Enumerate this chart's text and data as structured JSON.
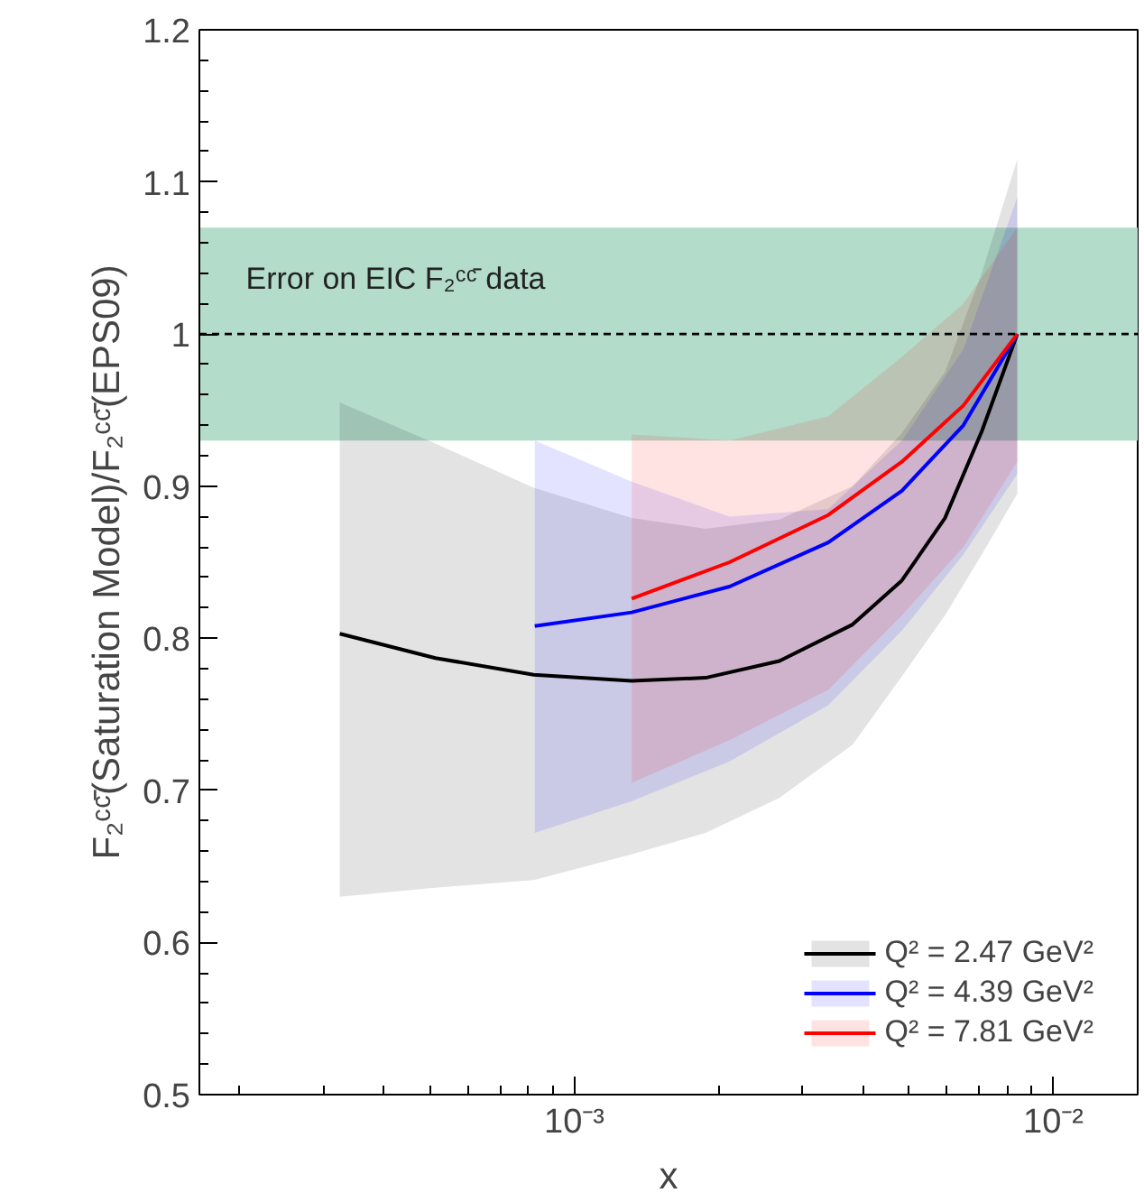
{
  "chart_data": {
    "type": "line",
    "xlabel": "x",
    "ylabel": "F₂ᶜᶜ̄(Saturation Model)/F₂ᶜᶜ̄(EPS09)",
    "log": "x",
    "xlim": [
      0.000165,
      0.015
    ],
    "xticks": [
      {
        "value": 0.001,
        "label": "10⁻³"
      },
      {
        "value": 0.01,
        "label": "10⁻²"
      }
    ],
    "ylim": [
      0.5,
      1.2
    ],
    "yticks": [
      0.5,
      0.6,
      0.7,
      0.8,
      0.9,
      {
        "value": 1,
        "label": "1"
      },
      1.1,
      1.2
    ],
    "grid": false,
    "legend": "bottom right",
    "bands": [
      {
        "axis": "y",
        "from": 0.93,
        "to": 1.07,
        "label": "Error on EIC F₂ᶜᶜ̄ data",
        "color": "#b3dccb"
      }
    ],
    "ref_lines": [
      {
        "axis": "y",
        "value": 1,
        "line_style": "dashed",
        "color": "#000000"
      }
    ],
    "series": [
      {
        "name": "Q² = 2.47 GeV²",
        "color": "#000000",
        "x": [
          0.000324,
          0.000513,
          0.000823,
          0.001318,
          0.00188,
          0.00268,
          0.00381,
          0.00483,
          0.00594,
          0.00709,
          0.00841
        ],
        "values": [
          0.803,
          0.787,
          0.776,
          0.772,
          0.774,
          0.785,
          0.809,
          0.838,
          0.879,
          0.936,
          1.0
        ],
        "upper": [
          0.955,
          0.928,
          0.899,
          0.879,
          0.872,
          0.878,
          0.9,
          0.935,
          0.975,
          1.04,
          1.115
        ],
        "lower": [
          0.63,
          0.636,
          0.641,
          0.658,
          0.672,
          0.695,
          0.73,
          0.775,
          0.815,
          0.855,
          0.895
        ]
      },
      {
        "name": "Q² = 4.39 GeV²",
        "color": "#0000ff",
        "x": [
          0.000827,
          0.001318,
          0.00211,
          0.00339,
          0.00483,
          0.00649,
          0.00841
        ],
        "values": [
          0.808,
          0.817,
          0.834,
          0.863,
          0.897,
          0.94,
          1.0
        ],
        "upper": [
          0.93,
          0.903,
          0.88,
          0.885,
          0.93,
          0.99,
          1.09
        ],
        "lower": [
          0.672,
          0.693,
          0.719,
          0.756,
          0.805,
          0.855,
          0.908
        ]
      },
      {
        "name": "Q² = 7.81 GeV²",
        "color": "#ff0000",
        "x": [
          0.001318,
          0.00211,
          0.00339,
          0.00483,
          0.00649,
          0.00841
        ],
        "values": [
          0.826,
          0.85,
          0.881,
          0.916,
          0.953,
          1.0
        ],
        "upper": [
          0.934,
          0.93,
          0.946,
          0.985,
          1.02,
          1.07
        ],
        "lower": [
          0.705,
          0.733,
          0.766,
          0.815,
          0.86,
          0.916
        ]
      }
    ]
  }
}
